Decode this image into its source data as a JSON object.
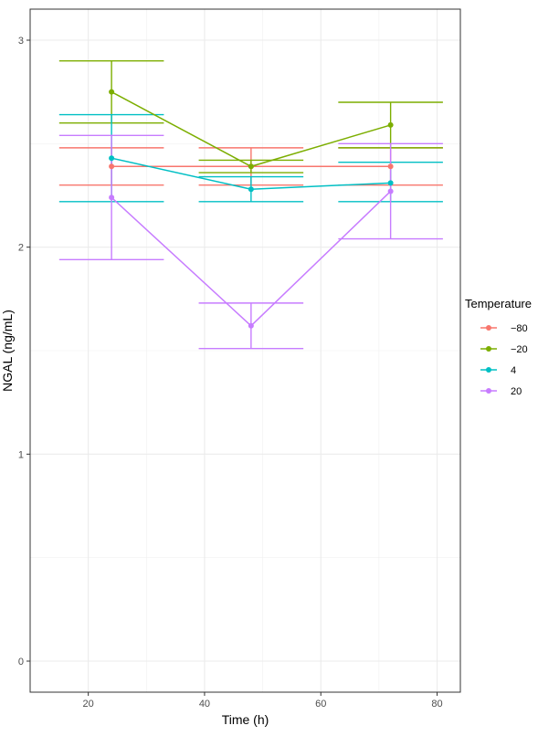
{
  "chart_data": {
    "type": "line",
    "xlabel": "Time (h)",
    "ylabel": "NGAL (ng/mL)",
    "xlim": [
      10,
      84
    ],
    "ylim": [
      -0.15,
      3.15
    ],
    "x_ticks": [
      20,
      40,
      60,
      80
    ],
    "y_ticks": [
      0,
      1,
      2,
      3
    ],
    "grid": true,
    "legend": {
      "title": "Temperature",
      "position": "right"
    },
    "x": [
      24,
      48,
      72
    ],
    "series": [
      {
        "name": "−80",
        "color": "#F8766D",
        "values": [
          2.39,
          2.39,
          2.39
        ],
        "lower": [
          2.3,
          2.3,
          2.3
        ],
        "upper": [
          2.48,
          2.48,
          2.48
        ]
      },
      {
        "name": "−20",
        "color": "#7CAE00",
        "values": [
          2.75,
          2.39,
          2.59
        ],
        "lower": [
          2.6,
          2.36,
          2.48
        ],
        "upper": [
          2.9,
          2.42,
          2.7
        ]
      },
      {
        "name": "4",
        "color": "#00BFC4",
        "values": [
          2.43,
          2.28,
          2.31
        ],
        "lower": [
          2.22,
          2.22,
          2.22
        ],
        "upper": [
          2.64,
          2.34,
          2.41
        ]
      },
      {
        "name": "20",
        "color": "#C77CFF",
        "values": [
          2.24,
          1.62,
          2.27
        ],
        "lower": [
          1.94,
          1.51,
          2.04
        ],
        "upper": [
          2.54,
          1.73,
          2.5
        ]
      }
    ],
    "errorbar_half_width": 9
  }
}
